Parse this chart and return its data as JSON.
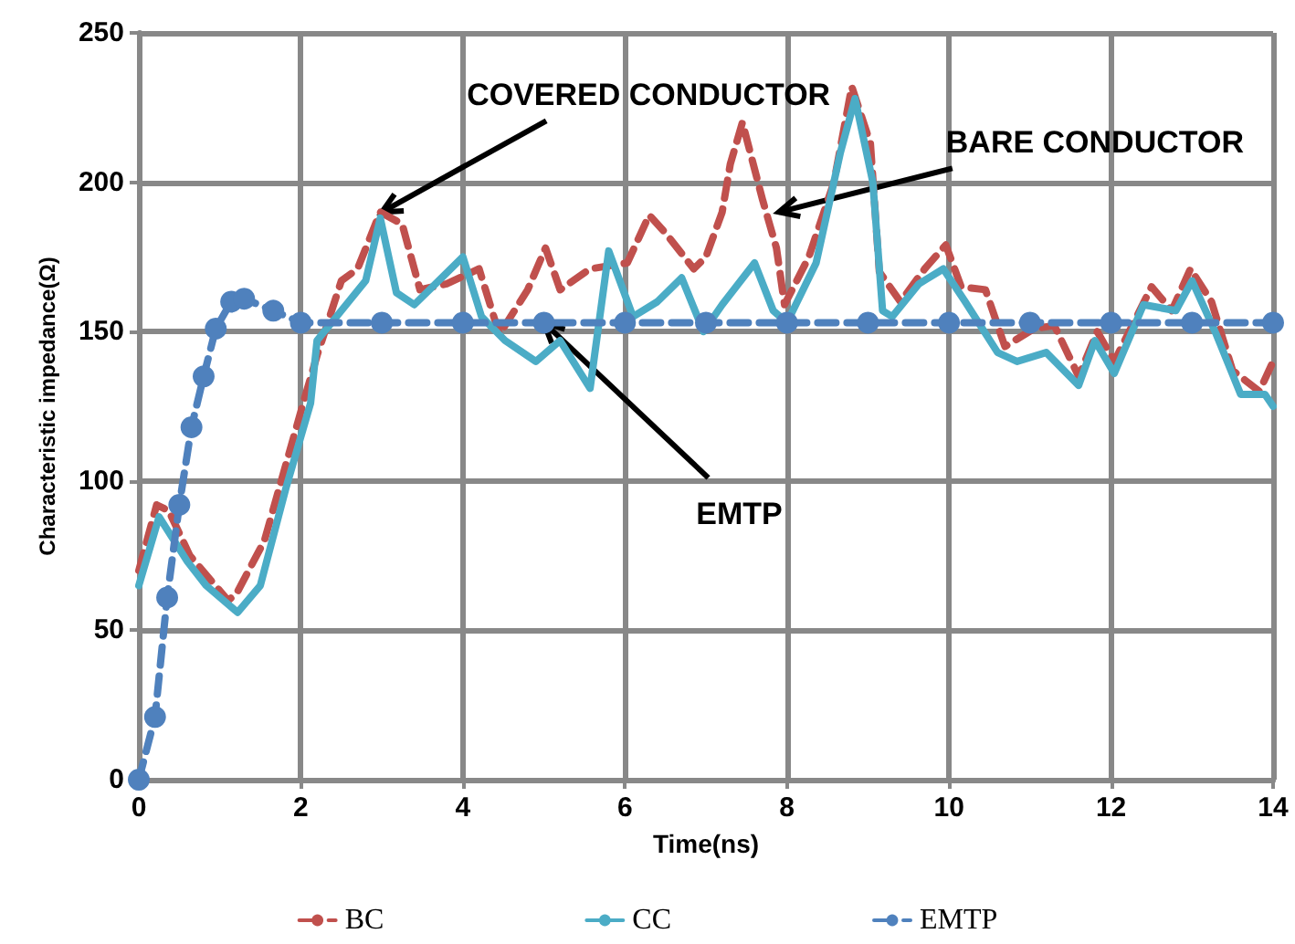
{
  "chart_data": {
    "type": "line",
    "xlabel": "Time(ns)",
    "ylabel": "Characteristic impedance(Ω)",
    "xlim": [
      0,
      14
    ],
    "xticks": [
      0,
      2,
      4,
      6,
      8,
      10,
      12,
      14
    ],
    "ylim": [
      0,
      250
    ],
    "yticks": [
      0,
      50,
      100,
      150,
      200,
      250
    ],
    "grid": true,
    "legend": "bottom",
    "annotations": [
      {
        "text": "COVERED CONDUCTOR",
        "x": 3,
        "y": 190
      },
      {
        "text": "BARE CONDUCTOR",
        "x": 7.9,
        "y": 190
      },
      {
        "text": "EMTP",
        "x": 5,
        "y": 153
      }
    ],
    "series": [
      {
        "name": "BC",
        "color": "#c0504d",
        "line_style": "dashed",
        "marker": "none",
        "x": [
          0,
          0.22,
          0.37,
          0.63,
          1.1,
          1.2,
          1.55,
          2.05,
          2.2,
          2.5,
          2.7,
          2.98,
          3.25,
          3.47,
          3.8,
          4.2,
          4.45,
          4.8,
          5.02,
          5.2,
          5.57,
          6.03,
          6.3,
          6.5,
          6.85,
          7.0,
          7.2,
          7.3,
          7.45,
          7.7,
          7.87,
          7.97,
          8.27,
          8.58,
          8.8,
          9.03,
          9.14,
          9.4,
          9.7,
          9.96,
          10.15,
          10.45,
          10.69,
          11.05,
          11.3,
          11.6,
          11.83,
          12.04,
          12.5,
          12.75,
          12.98,
          13.24,
          13.5,
          13.83,
          14
        ],
        "values": [
          70,
          92,
          90,
          75,
          60,
          62,
          80,
          128,
          142,
          167,
          171,
          190,
          186,
          164,
          166,
          171,
          149,
          164,
          178,
          164,
          171,
          173,
          189,
          183,
          171,
          175,
          190,
          206,
          220,
          194,
          178,
          159,
          175,
          200,
          232,
          213,
          170,
          160,
          171,
          179,
          165,
          164,
          145,
          151,
          152,
          135,
          150,
          140,
          165,
          157,
          171,
          160,
          137,
          130,
          140
        ]
      },
      {
        "name": "CC",
        "color": "#4bacc6",
        "line_style": "solid",
        "marker": "none",
        "x": [
          0,
          0.25,
          0.6,
          0.83,
          1.22,
          1.5,
          1.82,
          2.12,
          2.2,
          2.5,
          2.8,
          2.98,
          3.18,
          3.4,
          3.7,
          4.0,
          4.23,
          4.52,
          4.9,
          5.2,
          5.57,
          5.8,
          6.1,
          6.4,
          6.7,
          6.97,
          7.2,
          7.6,
          7.83,
          8.0,
          8.36,
          8.66,
          8.84,
          9.06,
          9.18,
          9.3,
          9.63,
          9.93,
          10.2,
          10.6,
          10.84,
          11.2,
          11.6,
          11.8,
          12.04,
          12.4,
          12.8,
          13.0,
          13.3,
          13.6,
          13.9,
          14.0
        ],
        "values": [
          65,
          88,
          73,
          65,
          56,
          65,
          98,
          126,
          147,
          157,
          167,
          188,
          163,
          159,
          167,
          175,
          155,
          147,
          140,
          147,
          131,
          177,
          155,
          160,
          168,
          150,
          159,
          173,
          157,
          153,
          173,
          210,
          228,
          200,
          157,
          155,
          166,
          171,
          160,
          143,
          140,
          143,
          132,
          147,
          136,
          159,
          157,
          167,
          149,
          129,
          129,
          125
        ]
      },
      {
        "name": "EMTP",
        "color": "#4f81bd",
        "line_style": "dashed",
        "marker": "circle",
        "x": [
          0,
          0.2,
          0.35,
          0.5,
          0.65,
          0.8,
          0.95,
          1.14,
          1.3,
          1.66,
          2,
          3,
          4,
          5,
          6,
          7,
          8,
          9,
          10,
          11,
          12,
          13,
          14
        ],
        "values": [
          0,
          21,
          61,
          92,
          118,
          135,
          151,
          160,
          161,
          157,
          153,
          153,
          153,
          153,
          153,
          153,
          153,
          153,
          153,
          153,
          153,
          153,
          153
        ]
      }
    ]
  }
}
